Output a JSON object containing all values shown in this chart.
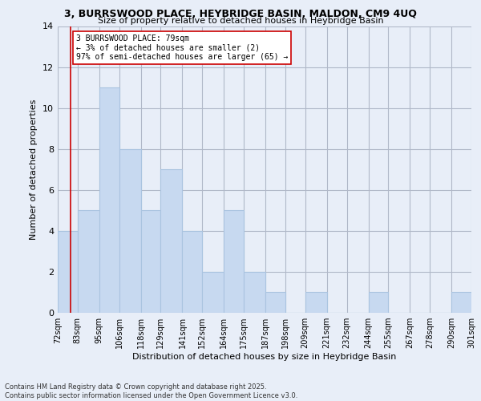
{
  "title1": "3, BURRSWOOD PLACE, HEYBRIDGE BASIN, MALDON, CM9 4UQ",
  "title2": "Size of property relative to detached houses in Heybridge Basin",
  "xlabel": "Distribution of detached houses by size in Heybridge Basin",
  "ylabel": "Number of detached properties",
  "bins": [
    "72sqm",
    "83sqm",
    "95sqm",
    "106sqm",
    "118sqm",
    "129sqm",
    "141sqm",
    "152sqm",
    "164sqm",
    "175sqm",
    "187sqm",
    "198sqm",
    "209sqm",
    "221sqm",
    "232sqm",
    "244sqm",
    "255sqm",
    "267sqm",
    "278sqm",
    "290sqm",
    "301sqm"
  ],
  "counts": [
    4,
    5,
    11,
    8,
    5,
    7,
    4,
    2,
    5,
    2,
    1,
    0,
    1,
    0,
    0,
    1,
    0,
    0,
    0,
    1
  ],
  "bin_edges_sqm": [
    72,
    83,
    95,
    106,
    118,
    129,
    141,
    152,
    164,
    175,
    187,
    198,
    209,
    221,
    232,
    244,
    255,
    267,
    278,
    290,
    301
  ],
  "bar_color": "#c7d9f0",
  "bar_edge_color": "#aac4e0",
  "grid_color": "#b0b8c8",
  "bg_color": "#e8eef8",
  "vline_x": 79,
  "vline_color": "#cc0000",
  "annotation_text": "3 BURRSWOOD PLACE: 79sqm\n← 3% of detached houses are smaller (2)\n97% of semi-detached houses are larger (65) →",
  "annotation_box_color": "white",
  "annotation_box_edge": "#cc0000",
  "ylim": [
    0,
    14
  ],
  "yticks": [
    0,
    2,
    4,
    6,
    8,
    10,
    12,
    14
  ],
  "footer1": "Contains HM Land Registry data © Crown copyright and database right 2025.",
  "footer2": "Contains public sector information licensed under the Open Government Licence v3.0."
}
